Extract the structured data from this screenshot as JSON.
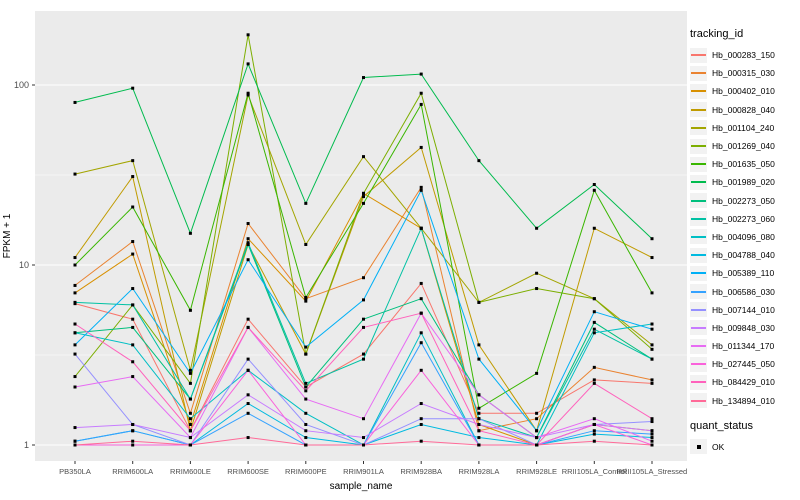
{
  "chart_data": {
    "type": "line",
    "title": "",
    "xlabel": "sample_name",
    "ylabel": "FPKM + 1",
    "y_scale": "log10",
    "y_ticks": [
      1,
      10,
      100
    ],
    "y_minor_ticks": [
      3.162,
      31.62,
      316.2
    ],
    "ylim": [
      0.95,
      280
    ],
    "grid": "on",
    "panel_bg": "#EBEBEB",
    "gridline_color": "#FFFFFF",
    "point_shape": "black-square",
    "legend_position": "right",
    "categories": [
      "PB350LA",
      "RRIM600LA",
      "RRIM600LE",
      "RRIM600SE",
      "RRIM600PE",
      "RRIM901LA",
      "RRIM928BA",
      "RRIM928LA",
      "RRIM928LE",
      "RRII105LA_Control",
      "RRII105LA_Stressed"
    ],
    "series": [
      {
        "name": "Hb_000283_150",
        "color": "#F8766D",
        "values": [
          6.1,
          5.0,
          1.2,
          5.0,
          2.1,
          3.2,
          7.9,
          1.5,
          1.5,
          2.3,
          2.2
        ]
      },
      {
        "name": "Hb_000315_030",
        "color": "#EA8331",
        "values": [
          7.7,
          13.5,
          1.5,
          17.0,
          6.5,
          8.5,
          27.0,
          1.2,
          1.4,
          2.7,
          2.3
        ]
      },
      {
        "name": "Hb_000402_010",
        "color": "#D89000",
        "values": [
          7.0,
          11.5,
          1.3,
          14.0,
          6.3,
          25.0,
          16.0,
          1.3,
          1.0,
          1.3,
          1.2
        ]
      },
      {
        "name": "Hb_000828_040",
        "color": "#C09B00",
        "values": [
          11.0,
          31.0,
          1.2,
          13.0,
          3.2,
          24.0,
          45.0,
          3.6,
          1.2,
          16.0,
          11.0
        ]
      },
      {
        "name": "Hb_001104_240",
        "color": "#A3A500",
        "values": [
          32.0,
          38.0,
          2.6,
          88.0,
          13.0,
          40.0,
          16.0,
          6.2,
          9.0,
          6.5,
          3.6
        ]
      },
      {
        "name": "Hb_001269_040",
        "color": "#7CAE00",
        "values": [
          2.4,
          6.0,
          2.2,
          190.0,
          3.2,
          25.0,
          90.0,
          6.2,
          7.4,
          6.5,
          3.4
        ]
      },
      {
        "name": "Hb_001635_050",
        "color": "#39B600",
        "values": [
          10.0,
          21.0,
          5.6,
          90.0,
          6.6,
          22.0,
          78.0,
          1.6,
          2.5,
          26.0,
          7.0
        ]
      },
      {
        "name": "Hb_001989_020",
        "color": "#00BB4E",
        "values": [
          80.0,
          96.0,
          15.0,
          131.0,
          22.0,
          110.0,
          115.0,
          38.0,
          16.0,
          28.0,
          14.0
        ]
      },
      {
        "name": "Hb_002273_050",
        "color": "#00BF7D",
        "values": [
          4.2,
          4.5,
          1.8,
          13.0,
          2.1,
          5.0,
          6.5,
          1.9,
          1.1,
          4.8,
          3.0
        ]
      },
      {
        "name": "Hb_002273_060",
        "color": "#00C1A3",
        "values": [
          6.2,
          6.0,
          1.8,
          13.3,
          2.2,
          3.0,
          16.0,
          1.4,
          1.1,
          4.4,
          3.0
        ]
      },
      {
        "name": "Hb_004096_080",
        "color": "#00BFC4",
        "values": [
          4.2,
          3.6,
          1.4,
          2.6,
          1.5,
          1.0,
          4.2,
          1.0,
          1.0,
          4.2,
          4.7
        ]
      },
      {
        "name": "Hb_004788_040",
        "color": "#00BAE0",
        "values": [
          1.05,
          1.2,
          1.0,
          1.7,
          1.1,
          1.0,
          1.3,
          1.1,
          1.0,
          1.15,
          1.1
        ]
      },
      {
        "name": "Hb_005389_110",
        "color": "#00B0F6",
        "values": [
          3.6,
          7.4,
          2.5,
          10.7,
          3.5,
          6.4,
          26.0,
          3.0,
          1.2,
          5.5,
          4.4
        ]
      },
      {
        "name": "Hb_006586_030",
        "color": "#35A2FF",
        "values": [
          1.05,
          1.2,
          1.0,
          1.5,
          1.0,
          1.0,
          3.7,
          1.0,
          1.0,
          1.2,
          1.15
        ]
      },
      {
        "name": "Hb_007144_010",
        "color": "#9590FF",
        "values": [
          3.2,
          1.3,
          1.0,
          3.0,
          1.3,
          1.0,
          1.4,
          1.4,
          1.0,
          1.3,
          1.35
        ]
      },
      {
        "name": "Hb_009848_030",
        "color": "#C77CFF",
        "values": [
          1.25,
          1.3,
          1.1,
          1.9,
          1.2,
          1.1,
          1.7,
          1.3,
          1.1,
          1.3,
          1.2
        ]
      },
      {
        "name": "Hb_011344_170",
        "color": "#E76BF3",
        "values": [
          2.1,
          2.4,
          1.1,
          4.5,
          1.8,
          1.4,
          5.4,
          1.9,
          1.1,
          1.4,
          1.05
        ]
      },
      {
        "name": "Hb_027445_050",
        "color": "#FA62DB",
        "values": [
          1.0,
          1.0,
          1.0,
          2.6,
          1.0,
          1.0,
          2.6,
          1.0,
          1.0,
          1.3,
          1.0
        ]
      },
      {
        "name": "Hb_084429_010",
        "color": "#FF62BC",
        "values": [
          4.7,
          2.9,
          1.2,
          4.5,
          2.0,
          4.5,
          5.4,
          1.2,
          1.0,
          2.2,
          1.4
        ]
      },
      {
        "name": "Hb_134894_010",
        "color": "#FF6A98",
        "values": [
          1.0,
          1.05,
          1.0,
          1.1,
          1.0,
          1.0,
          1.05,
          1.0,
          1.0,
          1.05,
          1.0
        ]
      }
    ]
  },
  "axes": {
    "x_title": "sample_name",
    "y_title": "FPKM + 1",
    "y_tick_labels": [
      "1",
      "10",
      "100"
    ]
  },
  "legend": {
    "tracking_title": "tracking_id",
    "quant_title": "quant_status",
    "quant_items": [
      {
        "label": "OK",
        "marker": "black-square"
      }
    ]
  }
}
